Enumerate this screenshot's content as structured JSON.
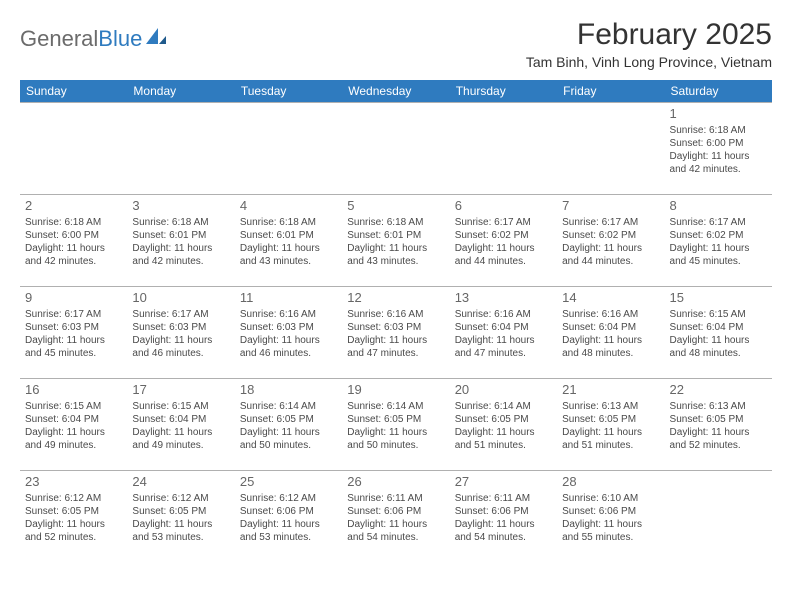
{
  "logo": {
    "word1": "General",
    "word2": "Blue"
  },
  "title": "February 2025",
  "location": "Tam Binh, Vinh Long Province, Vietnam",
  "day_headers": [
    "Sunday",
    "Monday",
    "Tuesday",
    "Wednesday",
    "Thursday",
    "Friday",
    "Saturday"
  ],
  "header_bg": "#2f7bbf",
  "header_fg": "#ffffff",
  "border_color": "#b0b0b0",
  "weeks": [
    [
      {
        "empty": true
      },
      {
        "empty": true
      },
      {
        "empty": true
      },
      {
        "empty": true
      },
      {
        "empty": true
      },
      {
        "empty": true
      },
      {
        "num": "1",
        "sunrise": "Sunrise: 6:18 AM",
        "sunset": "Sunset: 6:00 PM",
        "daylight": "Daylight: 11 hours and 42 minutes."
      }
    ],
    [
      {
        "num": "2",
        "sunrise": "Sunrise: 6:18 AM",
        "sunset": "Sunset: 6:00 PM",
        "daylight": "Daylight: 11 hours and 42 minutes."
      },
      {
        "num": "3",
        "sunrise": "Sunrise: 6:18 AM",
        "sunset": "Sunset: 6:01 PM",
        "daylight": "Daylight: 11 hours and 42 minutes."
      },
      {
        "num": "4",
        "sunrise": "Sunrise: 6:18 AM",
        "sunset": "Sunset: 6:01 PM",
        "daylight": "Daylight: 11 hours and 43 minutes."
      },
      {
        "num": "5",
        "sunrise": "Sunrise: 6:18 AM",
        "sunset": "Sunset: 6:01 PM",
        "daylight": "Daylight: 11 hours and 43 minutes."
      },
      {
        "num": "6",
        "sunrise": "Sunrise: 6:17 AM",
        "sunset": "Sunset: 6:02 PM",
        "daylight": "Daylight: 11 hours and 44 minutes."
      },
      {
        "num": "7",
        "sunrise": "Sunrise: 6:17 AM",
        "sunset": "Sunset: 6:02 PM",
        "daylight": "Daylight: 11 hours and 44 minutes."
      },
      {
        "num": "8",
        "sunrise": "Sunrise: 6:17 AM",
        "sunset": "Sunset: 6:02 PM",
        "daylight": "Daylight: 11 hours and 45 minutes."
      }
    ],
    [
      {
        "num": "9",
        "sunrise": "Sunrise: 6:17 AM",
        "sunset": "Sunset: 6:03 PM",
        "daylight": "Daylight: 11 hours and 45 minutes."
      },
      {
        "num": "10",
        "sunrise": "Sunrise: 6:17 AM",
        "sunset": "Sunset: 6:03 PM",
        "daylight": "Daylight: 11 hours and 46 minutes."
      },
      {
        "num": "11",
        "sunrise": "Sunrise: 6:16 AM",
        "sunset": "Sunset: 6:03 PM",
        "daylight": "Daylight: 11 hours and 46 minutes."
      },
      {
        "num": "12",
        "sunrise": "Sunrise: 6:16 AM",
        "sunset": "Sunset: 6:03 PM",
        "daylight": "Daylight: 11 hours and 47 minutes."
      },
      {
        "num": "13",
        "sunrise": "Sunrise: 6:16 AM",
        "sunset": "Sunset: 6:04 PM",
        "daylight": "Daylight: 11 hours and 47 minutes."
      },
      {
        "num": "14",
        "sunrise": "Sunrise: 6:16 AM",
        "sunset": "Sunset: 6:04 PM",
        "daylight": "Daylight: 11 hours and 48 minutes."
      },
      {
        "num": "15",
        "sunrise": "Sunrise: 6:15 AM",
        "sunset": "Sunset: 6:04 PM",
        "daylight": "Daylight: 11 hours and 48 minutes."
      }
    ],
    [
      {
        "num": "16",
        "sunrise": "Sunrise: 6:15 AM",
        "sunset": "Sunset: 6:04 PM",
        "daylight": "Daylight: 11 hours and 49 minutes."
      },
      {
        "num": "17",
        "sunrise": "Sunrise: 6:15 AM",
        "sunset": "Sunset: 6:04 PM",
        "daylight": "Daylight: 11 hours and 49 minutes."
      },
      {
        "num": "18",
        "sunrise": "Sunrise: 6:14 AM",
        "sunset": "Sunset: 6:05 PM",
        "daylight": "Daylight: 11 hours and 50 minutes."
      },
      {
        "num": "19",
        "sunrise": "Sunrise: 6:14 AM",
        "sunset": "Sunset: 6:05 PM",
        "daylight": "Daylight: 11 hours and 50 minutes."
      },
      {
        "num": "20",
        "sunrise": "Sunrise: 6:14 AM",
        "sunset": "Sunset: 6:05 PM",
        "daylight": "Daylight: 11 hours and 51 minutes."
      },
      {
        "num": "21",
        "sunrise": "Sunrise: 6:13 AM",
        "sunset": "Sunset: 6:05 PM",
        "daylight": "Daylight: 11 hours and 51 minutes."
      },
      {
        "num": "22",
        "sunrise": "Sunrise: 6:13 AM",
        "sunset": "Sunset: 6:05 PM",
        "daylight": "Daylight: 11 hours and 52 minutes."
      }
    ],
    [
      {
        "num": "23",
        "sunrise": "Sunrise: 6:12 AM",
        "sunset": "Sunset: 6:05 PM",
        "daylight": "Daylight: 11 hours and 52 minutes."
      },
      {
        "num": "24",
        "sunrise": "Sunrise: 6:12 AM",
        "sunset": "Sunset: 6:05 PM",
        "daylight": "Daylight: 11 hours and 53 minutes."
      },
      {
        "num": "25",
        "sunrise": "Sunrise: 6:12 AM",
        "sunset": "Sunset: 6:06 PM",
        "daylight": "Daylight: 11 hours and 53 minutes."
      },
      {
        "num": "26",
        "sunrise": "Sunrise: 6:11 AM",
        "sunset": "Sunset: 6:06 PM",
        "daylight": "Daylight: 11 hours and 54 minutes."
      },
      {
        "num": "27",
        "sunrise": "Sunrise: 6:11 AM",
        "sunset": "Sunset: 6:06 PM",
        "daylight": "Daylight: 11 hours and 54 minutes."
      },
      {
        "num": "28",
        "sunrise": "Sunrise: 6:10 AM",
        "sunset": "Sunset: 6:06 PM",
        "daylight": "Daylight: 11 hours and 55 minutes."
      },
      {
        "empty": true
      }
    ]
  ]
}
